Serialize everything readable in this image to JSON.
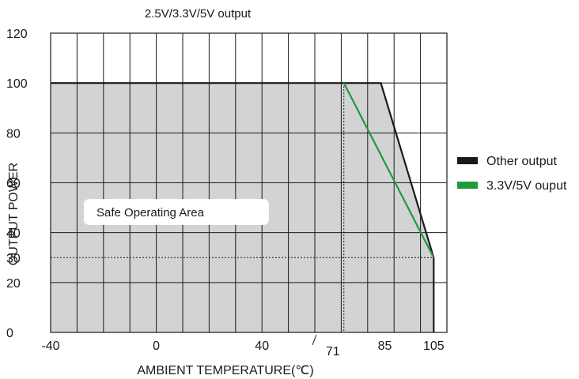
{
  "chart_data": {
    "type": "line",
    "title": "2.5V/3.3V/5V output",
    "xlabel": "AMBIENT TEMPERATURE(℃)",
    "ylabel": "OUTPUT POWER",
    "xlim": [
      -40,
      110
    ],
    "ylim": [
      0,
      120
    ],
    "x_ticks": [
      "-40",
      "0",
      "40",
      "71",
      "85",
      "105"
    ],
    "y_ticks": [
      "0",
      "20",
      "30",
      "40",
      "60",
      "80",
      "100",
      "120"
    ],
    "grid": true,
    "legend_position": "right",
    "series": [
      {
        "name": "Other output",
        "color": "#1a1a1a",
        "x": [
          -40,
          85,
          105,
          105
        ],
        "y": [
          100,
          100,
          30,
          0
        ]
      },
      {
        "name": "3.3V/5V ouput",
        "color": "#1f9a3c",
        "x": [
          71,
          105
        ],
        "y": [
          100,
          30
        ]
      }
    ],
    "area_fill": "#d3d3d3",
    "reference_lines": {
      "x": 71,
      "y": 30
    },
    "annotation": "Safe Operating Area"
  }
}
